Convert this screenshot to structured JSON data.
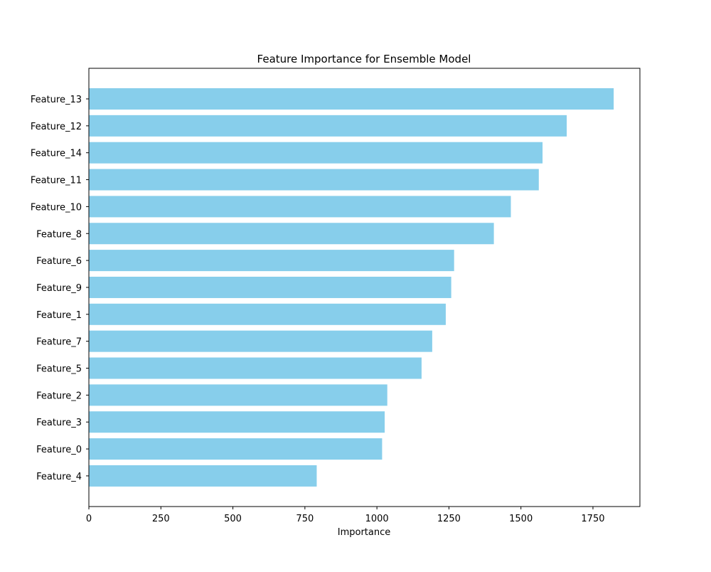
{
  "chart_data": {
    "type": "bar",
    "orientation": "horizontal",
    "title": "Feature Importance for Ensemble Model",
    "xlabel": "Importance",
    "ylabel": "",
    "categories": [
      "Feature_13",
      "Feature_12",
      "Feature_14",
      "Feature_11",
      "Feature_10",
      "Feature_8",
      "Feature_6",
      "Feature_9",
      "Feature_1",
      "Feature_7",
      "Feature_5",
      "Feature_2",
      "Feature_3",
      "Feature_0",
      "Feature_4"
    ],
    "values": [
      1822,
      1659,
      1575,
      1562,
      1465,
      1406,
      1268,
      1258,
      1239,
      1192,
      1155,
      1036,
      1027,
      1018,
      791
    ],
    "xlim": [
      0,
      1913
    ],
    "xticks": [
      0,
      250,
      500,
      750,
      1000,
      1250,
      1500,
      1750
    ],
    "grid": false,
    "bar_color": "#87CEEB"
  }
}
